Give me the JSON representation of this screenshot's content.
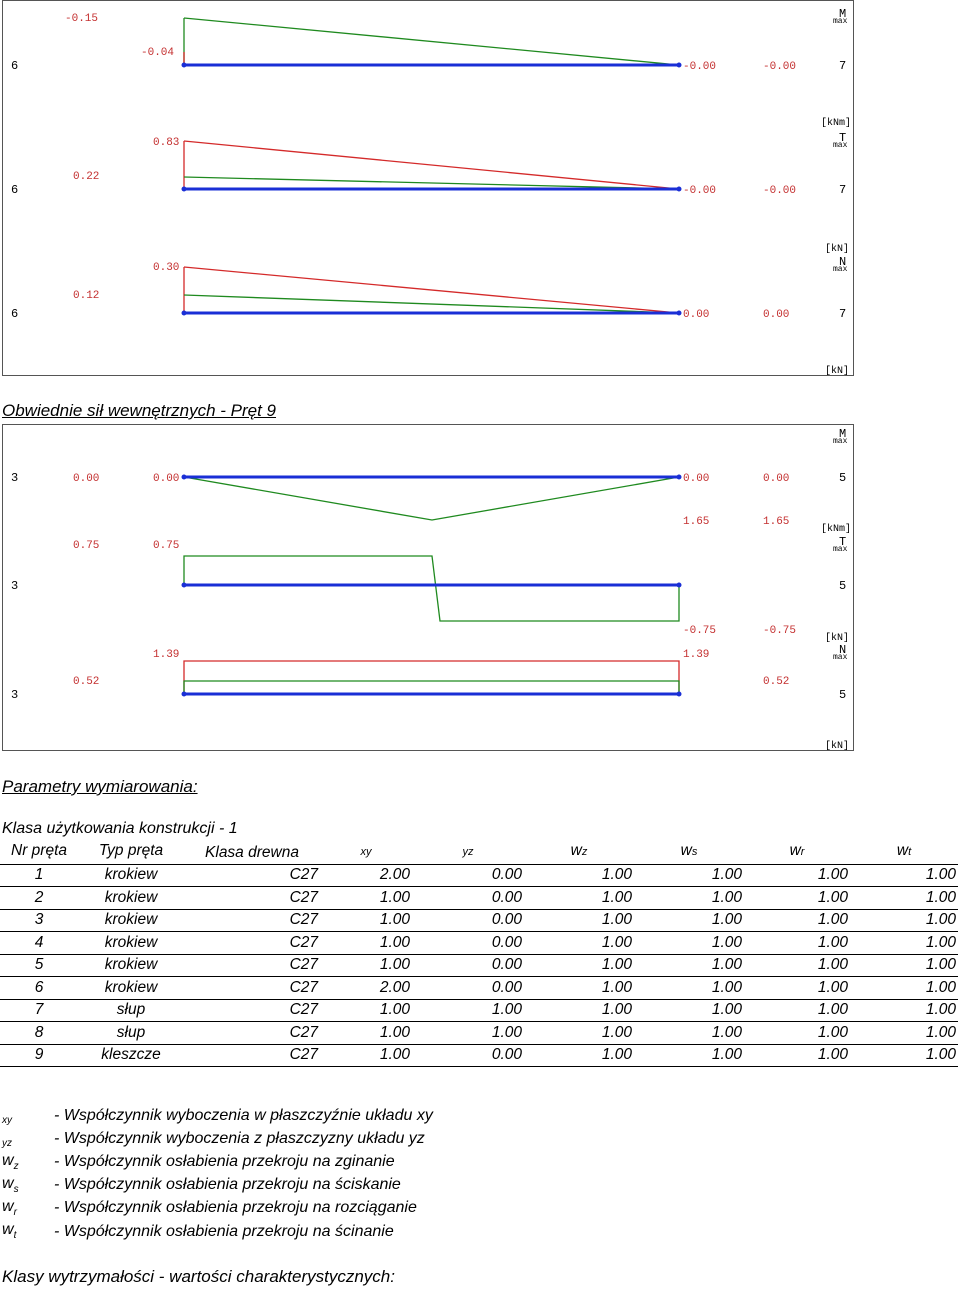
{
  "diagram1": {
    "panels": [
      {
        "node_left": "6",
        "node_right": "7",
        "unit_head": "M",
        "unit_sub": "max",
        "unit": "[kNm]",
        "labels": {
          "top_a": "-0.15",
          "mid_a": "-0.04",
          "right_a": "-0.00",
          "right_b": "-0.00"
        }
      },
      {
        "node_left": "6",
        "node_right": "7",
        "unit_head": "T",
        "unit_sub": "max",
        "unit": "[kN]",
        "labels": {
          "top_a": "0.83",
          "mid_a": "0.22",
          "right_a": "-0.00",
          "right_b": "-0.00"
        }
      },
      {
        "node_left": "6",
        "node_right": "7",
        "unit_head": "N",
        "unit_sub": "max",
        "unit": "[kN]",
        "labels": {
          "top_a": "0.30",
          "mid_a": "0.12",
          "right_a": "0.00",
          "right_b": "0.00"
        }
      }
    ]
  },
  "section_forces_title": "Obwiednie sił wewnętrznych - Pręt 9",
  "diagram2": {
    "panels": [
      {
        "node_left": "3",
        "node_right": "5",
        "unit_head": "M",
        "unit_sub": "max",
        "unit": "[kNm]",
        "labels": {
          "l1": "0.00",
          "l2": "0.00",
          "r1": "0.00",
          "r2": "0.00",
          "b1": "1.65",
          "b2": "1.65"
        }
      },
      {
        "node_left": "3",
        "node_right": "5",
        "unit_head": "T",
        "unit_sub": "max",
        "unit": "[kN]",
        "labels": {
          "l1": "0.75",
          "l2": "0.75",
          "b1": "-0.75",
          "b2": "-0.75"
        }
      },
      {
        "node_left": "3",
        "node_right": "5",
        "unit_head": "N",
        "unit_sub": "max",
        "unit": "[kN]",
        "labels": {
          "t1": "1.39",
          "t2": "1.39",
          "l1": "0.52",
          "r1": "0.52"
        }
      }
    ]
  },
  "params_title": "Parametry wymiarowania:",
  "class_line": "Klasa użytkowania konstrukcji - 1",
  "table": {
    "headers": [
      "Nr pręta",
      "Typ pręta",
      "Klasa drewna",
      "xy",
      "yz",
      "wz",
      "ws",
      "wr",
      "wt"
    ],
    "header_sym_prefix": "",
    "rows": [
      [
        "1",
        "krokiew",
        "C27",
        "2.00",
        "0.00",
        "1.00",
        "1.00",
        "1.00",
        "1.00"
      ],
      [
        "2",
        "krokiew",
        "C27",
        "1.00",
        "0.00",
        "1.00",
        "1.00",
        "1.00",
        "1.00"
      ],
      [
        "3",
        "krokiew",
        "C27",
        "1.00",
        "0.00",
        "1.00",
        "1.00",
        "1.00",
        "1.00"
      ],
      [
        "4",
        "krokiew",
        "C27",
        "1.00",
        "0.00",
        "1.00",
        "1.00",
        "1.00",
        "1.00"
      ],
      [
        "5",
        "krokiew",
        "C27",
        "1.00",
        "0.00",
        "1.00",
        "1.00",
        "1.00",
        "1.00"
      ],
      [
        "6",
        "krokiew",
        "C27",
        "2.00",
        "0.00",
        "1.00",
        "1.00",
        "1.00",
        "1.00"
      ],
      [
        "7",
        "słup",
        "C27",
        "1.00",
        "1.00",
        "1.00",
        "1.00",
        "1.00",
        "1.00"
      ],
      [
        "8",
        "słup",
        "C27",
        "1.00",
        "1.00",
        "1.00",
        "1.00",
        "1.00",
        "1.00"
      ],
      [
        "9",
        "kleszcze",
        "C27",
        "1.00",
        "0.00",
        "1.00",
        "1.00",
        "1.00",
        "1.00"
      ]
    ]
  },
  "legend": [
    {
      "sym": "",
      "sub": "xy",
      "text": "- Współczynnik wyboczenia w płaszczyźnie układu xy"
    },
    {
      "sym": "",
      "sub": "yz",
      "text": "- Współczynnik wyboczenia z płaszczyzny układu yz"
    },
    {
      "sym": "w",
      "sub": "z",
      "text": "- Współczynnik osłabienia przekroju na zginanie"
    },
    {
      "sym": "w",
      "sub": "s",
      "text": "- Współczynnik osłabienia przekroju na ściskanie"
    },
    {
      "sym": "w",
      "sub": "r",
      "text": "- Współczynnik osłabienia przekroju na rozciąganie"
    },
    {
      "sym": "w",
      "sub": "t",
      "text": "- Współczynnik osłabienia przekroju na ścinanie"
    }
  ],
  "footer_title": "Klasy wytrzymałości - wartości charakterystycznych:",
  "colors": {
    "blue": "#1a2fd6",
    "green": "#1f8a1f",
    "red": "#d42a2a",
    "label": "#c43030",
    "node": "#000000"
  }
}
